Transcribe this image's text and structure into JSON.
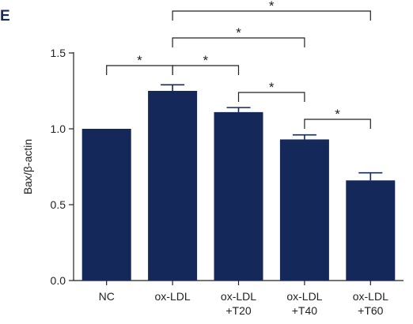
{
  "panel_label": "E",
  "colors": {
    "bar": "#14285a",
    "axis": "#222222"
  },
  "chart_data": {
    "type": "bar",
    "title": "",
    "xlabel": "",
    "ylabel": "Bax/β-actin",
    "ylim": [
      0,
      1.5
    ],
    "yticks": [
      0.0,
      0.5,
      1.0,
      1.5
    ],
    "ytick_labels": [
      "0.0",
      "0.5",
      "1.0",
      "1.5"
    ],
    "categories": [
      [
        "NC"
      ],
      [
        "ox-LDL"
      ],
      [
        "ox-LDL",
        "+T20"
      ],
      [
        "ox-LDL",
        "+T40"
      ],
      [
        "ox-LDL",
        "+T60"
      ]
    ],
    "values": [
      1.0,
      1.25,
      1.11,
      0.93,
      0.66
    ],
    "errors": [
      0,
      0.04,
      0.03,
      0.03,
      0.05
    ],
    "significance": [
      {
        "from": 0,
        "to": 1,
        "label": "*"
      },
      {
        "from": 1,
        "to": 2,
        "label": "*"
      },
      {
        "from": 2,
        "to": 3,
        "label": "*"
      },
      {
        "from": 3,
        "to": 4,
        "label": "*"
      },
      {
        "from": 1,
        "to": 3,
        "label": "*"
      },
      {
        "from": 1,
        "to": 4,
        "label": "*"
      }
    ]
  }
}
